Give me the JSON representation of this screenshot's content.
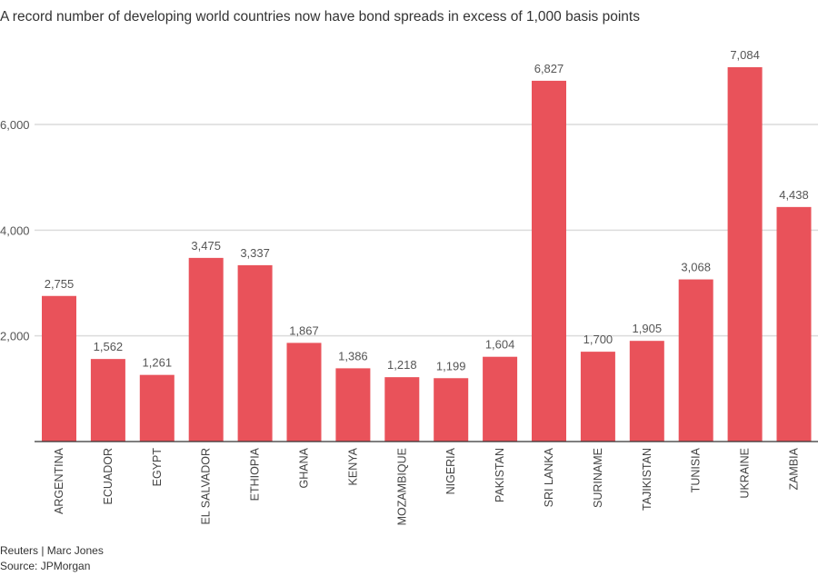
{
  "chart_data": {
    "type": "bar",
    "title": "A record number of developing world countries now have bond spreads in excess of 1,000 basis points",
    "categories": [
      "ARGENTINA",
      "ECUADOR",
      "EGYPT",
      "EL SALVADOR",
      "ETHIOPIA",
      "GHANA",
      "KENYA",
      "MOZAMBIQUE",
      "NIGERIA",
      "PAKISTAN",
      "SRI LANKA",
      "SURINAME",
      "TAJIKISTAN",
      "TUNISIA",
      "UKRAINE",
      "ZAMBIA"
    ],
    "values": [
      2755,
      1562,
      1261,
      3475,
      3337,
      1867,
      1386,
      1218,
      1199,
      1604,
      6827,
      1700,
      1905,
      3068,
      7084,
      4438
    ],
    "data_labels": [
      "2,755",
      "1,562",
      "1,261",
      "3,475",
      "3,337",
      "1,867",
      "1,386",
      "1,218",
      "1,199",
      "1,604",
      "6,827",
      "1,700",
      "1,905",
      "3,068",
      "7,084",
      "4,438"
    ],
    "yticks": [
      2000,
      4000,
      6000
    ],
    "ytick_labels": [
      "2,000",
      "4,000",
      "6,000"
    ],
    "ylim": [
      0,
      7300
    ],
    "grid": true,
    "bar_color": "#e9525a",
    "xlabel": "",
    "ylabel": ""
  },
  "footer": {
    "credit": "Reuters | Marc Jones",
    "source": "Source: JPMorgan"
  }
}
